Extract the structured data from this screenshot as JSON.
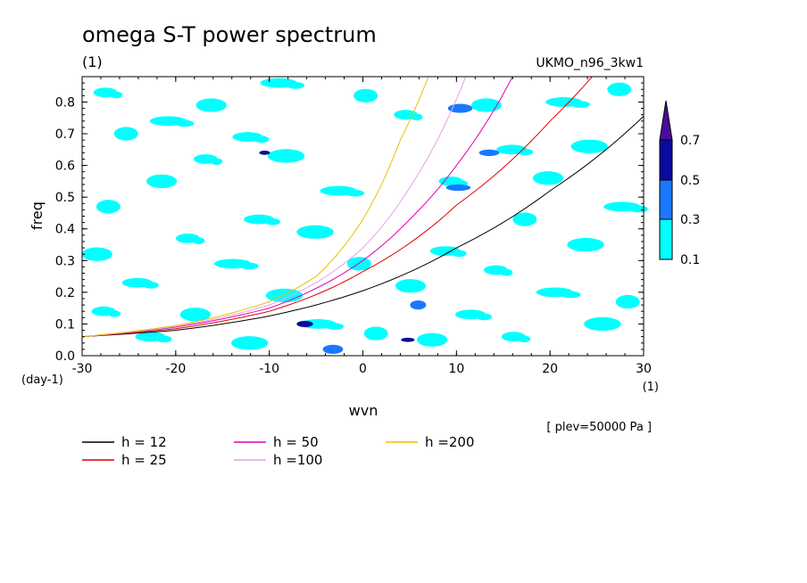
{
  "chart_data": {
    "type": "contour",
    "title": "omega S-T power spectrum",
    "units_label": "(1)",
    "model_label": "UKMO_n96_3kw1",
    "xlabel": "wvn",
    "ylabel": "freq",
    "x_units": "(1)",
    "y_units": "(day-1)",
    "level_note": "[ plev=50000 Pa ]",
    "xlim": [
      -30,
      30
    ],
    "ylim": [
      0,
      0.88
    ],
    "x_ticks": [
      -30,
      -20,
      -10,
      0,
      10,
      20,
      30
    ],
    "x_tick_labels": [
      "-30",
      "-20",
      "-10",
      "0",
      "10",
      "20",
      "30"
    ],
    "y_ticks": [
      0,
      0.1,
      0.2,
      0.3,
      0.4,
      0.5,
      0.6,
      0.7,
      0.8
    ],
    "y_tick_labels": [
      "0.0",
      "0.1",
      "0.2",
      "0.3",
      "0.4",
      "0.5",
      "0.6",
      "0.7",
      "0.8"
    ],
    "colorbar": {
      "levels": [
        0.1,
        0.3,
        0.5,
        0.7
      ],
      "labels": [
        "0.1",
        "0.3",
        "0.5",
        "0.7"
      ],
      "colors": [
        "#00ffff",
        "#1a78ff",
        "#0a0a9e",
        "#4b0a9a"
      ]
    },
    "series": [
      {
        "name": "h = 12",
        "h": 12,
        "color": "#000000",
        "x": [
          -30,
          -20,
          -10,
          0,
          10,
          20,
          30
        ],
        "y": [
          0.06,
          0.08,
          0.125,
          0.205,
          0.34,
          0.52,
          0.755
        ]
      },
      {
        "name": "h = 25",
        "h": 25,
        "color": "#e00000",
        "x": [
          -30,
          -20,
          -10,
          0,
          10,
          20,
          24.5
        ],
        "y": [
          0.06,
          0.085,
          0.14,
          0.265,
          0.475,
          0.74,
          0.88
        ]
      },
      {
        "name": "h = 50",
        "h": 50,
        "color": "#e000b0",
        "x": [
          -30,
          -20,
          -10,
          0,
          5,
          10,
          16
        ],
        "y": [
          0.06,
          0.09,
          0.15,
          0.3,
          0.43,
          0.6,
          0.88
        ]
      },
      {
        "name": "h =100",
        "h": 100,
        "color": "#e8a0e8",
        "x": [
          -30,
          -20,
          -10,
          -5,
          0,
          5,
          11
        ],
        "y": [
          0.06,
          0.092,
          0.16,
          0.23,
          0.34,
          0.53,
          0.88
        ]
      },
      {
        "name": "h =200",
        "h": 200,
        "color": "#e8c000",
        "x": [
          -30,
          -20,
          -10,
          -5,
          0,
          4,
          7
        ],
        "y": [
          0.06,
          0.095,
          0.17,
          0.25,
          0.43,
          0.68,
          0.88
        ]
      }
    ],
    "contour_regions": [
      {
        "x": -27.5,
        "y": 0.83,
        "level": 0.1
      },
      {
        "x": -16.2,
        "y": 0.79,
        "level": 0.1
      },
      {
        "x": -20.8,
        "y": 0.74,
        "level": 0.1
      },
      {
        "x": -25.3,
        "y": 0.7,
        "level": 0.1
      },
      {
        "x": -12.3,
        "y": 0.69,
        "level": 0.1
      },
      {
        "x": -8.2,
        "y": 0.63,
        "level": 0.1
      },
      {
        "x": -16.8,
        "y": 0.62,
        "level": 0.1
      },
      {
        "x": -21.5,
        "y": 0.55,
        "level": 0.1
      },
      {
        "x": -2.6,
        "y": 0.52,
        "level": 0.1
      },
      {
        "x": -27.2,
        "y": 0.47,
        "level": 0.1
      },
      {
        "x": -11.1,
        "y": 0.43,
        "level": 0.1
      },
      {
        "x": -5.1,
        "y": 0.39,
        "level": 0.1
      },
      {
        "x": -18.7,
        "y": 0.37,
        "level": 0.1
      },
      {
        "x": -28.4,
        "y": 0.32,
        "level": 0.1
      },
      {
        "x": -13.9,
        "y": 0.29,
        "level": 0.1
      },
      {
        "x": -0.4,
        "y": 0.29,
        "level": 0.1
      },
      {
        "x": -24.1,
        "y": 0.23,
        "level": 0.1
      },
      {
        "x": -8.4,
        "y": 0.19,
        "level": 0.1
      },
      {
        "x": -27.7,
        "y": 0.14,
        "level": 0.1
      },
      {
        "x": -17.9,
        "y": 0.13,
        "level": 0.1
      },
      {
        "x": -4.8,
        "y": 0.1,
        "level": 0.1
      },
      {
        "x": 1.4,
        "y": 0.07,
        "level": 0.1
      },
      {
        "x": -22.7,
        "y": 0.06,
        "level": 0.1
      },
      {
        "x": -12.1,
        "y": 0.04,
        "level": 0.1
      },
      {
        "x": 4.6,
        "y": 0.76,
        "level": 0.1
      },
      {
        "x": 13.2,
        "y": 0.79,
        "level": 0.1
      },
      {
        "x": 21.5,
        "y": 0.8,
        "level": 0.1
      },
      {
        "x": 27.4,
        "y": 0.84,
        "level": 0.1
      },
      {
        "x": 15.9,
        "y": 0.65,
        "level": 0.1
      },
      {
        "x": 24.2,
        "y": 0.66,
        "level": 0.1
      },
      {
        "x": 9.4,
        "y": 0.55,
        "level": 0.1
      },
      {
        "x": 19.8,
        "y": 0.56,
        "level": 0.1
      },
      {
        "x": 27.7,
        "y": 0.47,
        "level": 0.1
      },
      {
        "x": 17.3,
        "y": 0.43,
        "level": 0.1
      },
      {
        "x": 8.8,
        "y": 0.33,
        "level": 0.1
      },
      {
        "x": 23.8,
        "y": 0.35,
        "level": 0.1
      },
      {
        "x": 14.2,
        "y": 0.27,
        "level": 0.1
      },
      {
        "x": 5.1,
        "y": 0.22,
        "level": 0.1
      },
      {
        "x": 20.5,
        "y": 0.2,
        "level": 0.1
      },
      {
        "x": 28.3,
        "y": 0.17,
        "level": 0.1
      },
      {
        "x": 11.5,
        "y": 0.13,
        "level": 0.1
      },
      {
        "x": 25.6,
        "y": 0.1,
        "level": 0.1
      },
      {
        "x": 16.1,
        "y": 0.06,
        "level": 0.1
      },
      {
        "x": 7.4,
        "y": 0.05,
        "level": 0.1
      },
      {
        "x": -9.0,
        "y": 0.86,
        "level": 0.1
      },
      {
        "x": 0.3,
        "y": 0.82,
        "level": 0.1
      },
      {
        "x": 13.5,
        "y": 0.64,
        "level": 0.3
      },
      {
        "x": 10.4,
        "y": 0.78,
        "level": 0.3
      },
      {
        "x": -6.2,
        "y": 0.1,
        "level": 0.3
      },
      {
        "x": -3.2,
        "y": 0.02,
        "level": 0.3
      },
      {
        "x": 10.2,
        "y": 0.53,
        "level": 0.3
      },
      {
        "x": 5.9,
        "y": 0.16,
        "level": 0.3
      },
      {
        "x": 4.8,
        "y": 0.05,
        "level": 0.5
      },
      {
        "x": -6.2,
        "y": 0.1,
        "level": 0.5
      },
      {
        "x": -10.5,
        "y": 0.64,
        "level": 0.5
      }
    ]
  },
  "legend": [
    {
      "label": "h = 12",
      "color": "#000000"
    },
    {
      "label": "h = 50",
      "color": "#e000b0"
    },
    {
      "label": "h =200",
      "color": "#e8c000"
    },
    {
      "label": "h = 25",
      "color": "#e00000"
    },
    {
      "label": "h =100",
      "color": "#e8a0e8"
    }
  ]
}
